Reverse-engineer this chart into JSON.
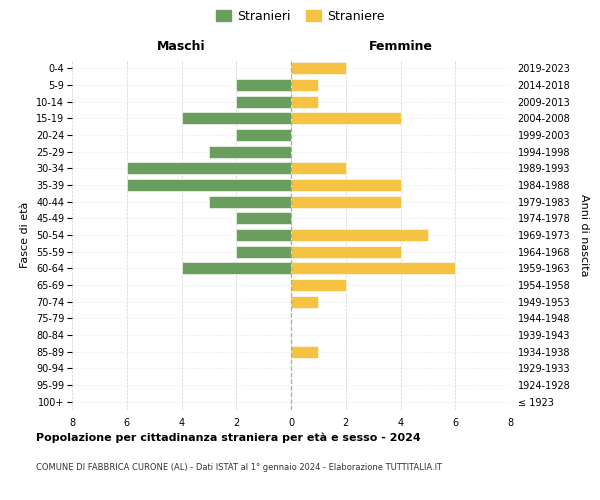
{
  "age_groups": [
    "100+",
    "95-99",
    "90-94",
    "85-89",
    "80-84",
    "75-79",
    "70-74",
    "65-69",
    "60-64",
    "55-59",
    "50-54",
    "45-49",
    "40-44",
    "35-39",
    "30-34",
    "25-29",
    "20-24",
    "15-19",
    "10-14",
    "5-9",
    "0-4"
  ],
  "birth_years": [
    "≤ 1923",
    "1924-1928",
    "1929-1933",
    "1934-1938",
    "1939-1943",
    "1944-1948",
    "1949-1953",
    "1954-1958",
    "1959-1963",
    "1964-1968",
    "1969-1973",
    "1974-1978",
    "1979-1983",
    "1984-1988",
    "1989-1993",
    "1994-1998",
    "1999-2003",
    "2004-2008",
    "2009-2013",
    "2014-2018",
    "2019-2023"
  ],
  "maschi": [
    0,
    0,
    0,
    0,
    0,
    0,
    0,
    0,
    4,
    2,
    2,
    2,
    3,
    6,
    6,
    3,
    2,
    4,
    2,
    2,
    0
  ],
  "femmine": [
    0,
    0,
    0,
    1,
    0,
    0,
    1,
    2,
    6,
    4,
    5,
    0,
    4,
    4,
    2,
    0,
    0,
    4,
    1,
    1,
    2
  ],
  "color_maschi": "#6a9e5e",
  "color_femmine": "#f5c242",
  "title_main": "Popolazione per cittadinanza straniera per età e sesso - 2024",
  "title_sub": "COMUNE DI FABBRICA CURONE (AL) - Dati ISTAT al 1° gennaio 2024 - Elaborazione TUTTITALIA.IT",
  "label_maschi_header": "Maschi",
  "label_femmine_header": "Femmine",
  "ylabel_left": "Fasce di età",
  "ylabel_right": "Anni di nascita",
  "legend_stranieri": "Stranieri",
  "legend_straniere": "Straniere",
  "xlim": 8,
  "background_color": "#ffffff",
  "grid_color": "#cccccc"
}
